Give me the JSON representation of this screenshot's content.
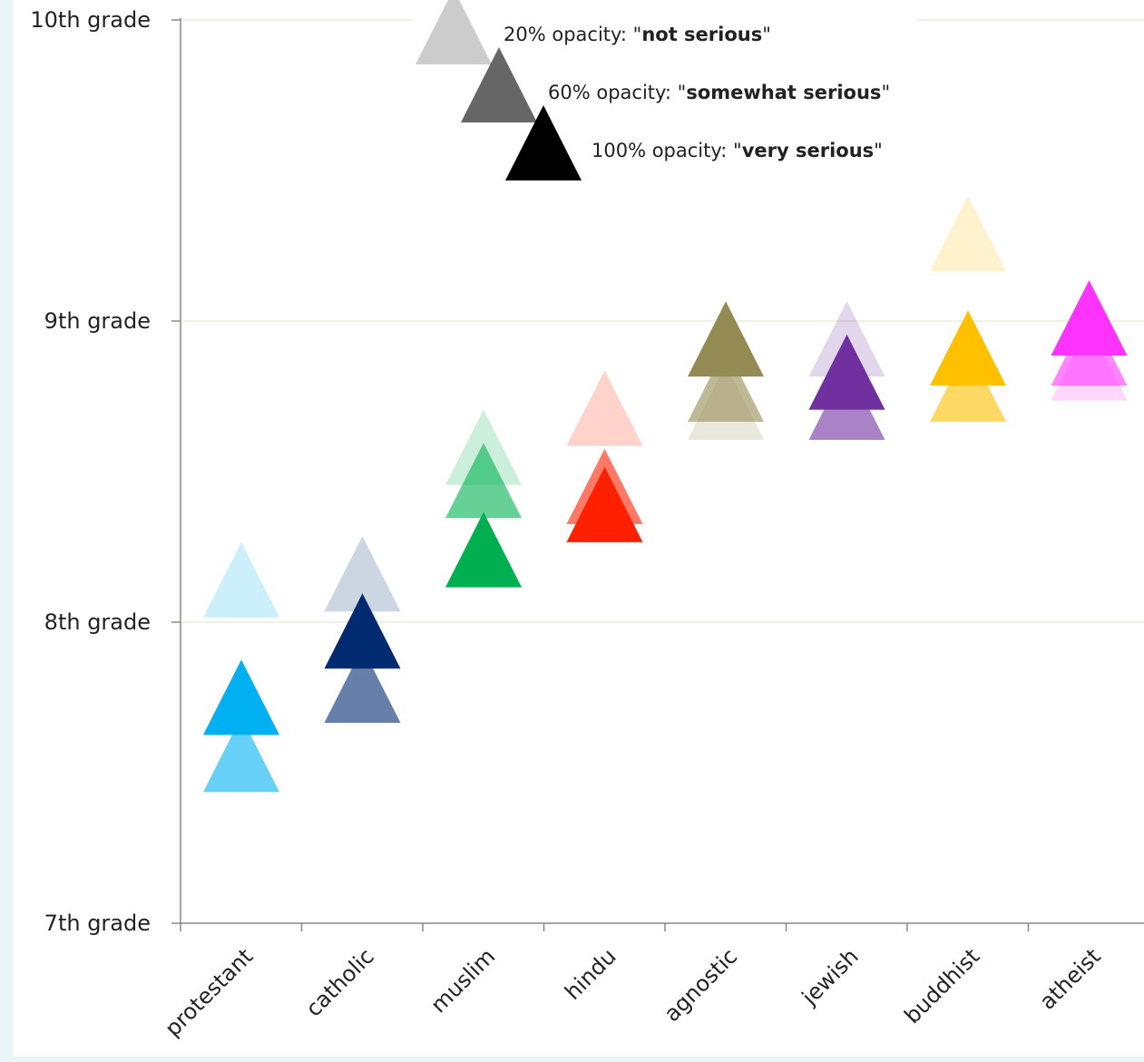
{
  "chart_data": {
    "type": "scatter",
    "marker": "triangle",
    "categories": [
      "protestant",
      "catholic",
      "muslim",
      "hindu",
      "agnostic",
      "jewish",
      "buddhist",
      "atheist"
    ],
    "y_ticks": [
      {
        "value": 7,
        "label": "7th grade"
      },
      {
        "value": 8,
        "label": "8th grade"
      },
      {
        "value": 9,
        "label": "9th grade"
      },
      {
        "value": 10,
        "label": "10th grade"
      }
    ],
    "ylim": [
      7,
      10
    ],
    "grid": true,
    "colors": {
      "protestant": "#00b0f0",
      "catholic": "#002b70",
      "muslim": "#00b050",
      "hindu": "#ff2000",
      "agnostic": "#948a54",
      "jewish": "#7030a0",
      "buddhist": "#ffc000",
      "atheist": "#ff33ff"
    },
    "series": [
      {
        "opacity": 0.2,
        "values": [
          8.13,
          8.15,
          8.57,
          8.7,
          8.72,
          8.93,
          9.28,
          8.85
        ]
      },
      {
        "opacity": 0.6,
        "values": [
          7.55,
          7.78,
          8.46,
          8.44,
          8.78,
          8.72,
          8.78,
          8.9
        ]
      },
      {
        "opacity": 1.0,
        "values": [
          7.74,
          7.96,
          8.23,
          8.38,
          8.93,
          8.82,
          8.9,
          9.0
        ]
      }
    ],
    "legend": {
      "placement": "top",
      "entries": [
        {
          "opacity": 0.2,
          "prefix": "20% opacity: \"",
          "bold": "not serious",
          "suffix": "\""
        },
        {
          "opacity": 0.6,
          "prefix": "60% opacity: \"",
          "bold": "somewhat serious",
          "suffix": "\""
        },
        {
          "opacity": 1.0,
          "prefix": "100% opacity: \"",
          "bold": "very serious",
          "suffix": "\""
        }
      ],
      "color": "#000000"
    }
  }
}
